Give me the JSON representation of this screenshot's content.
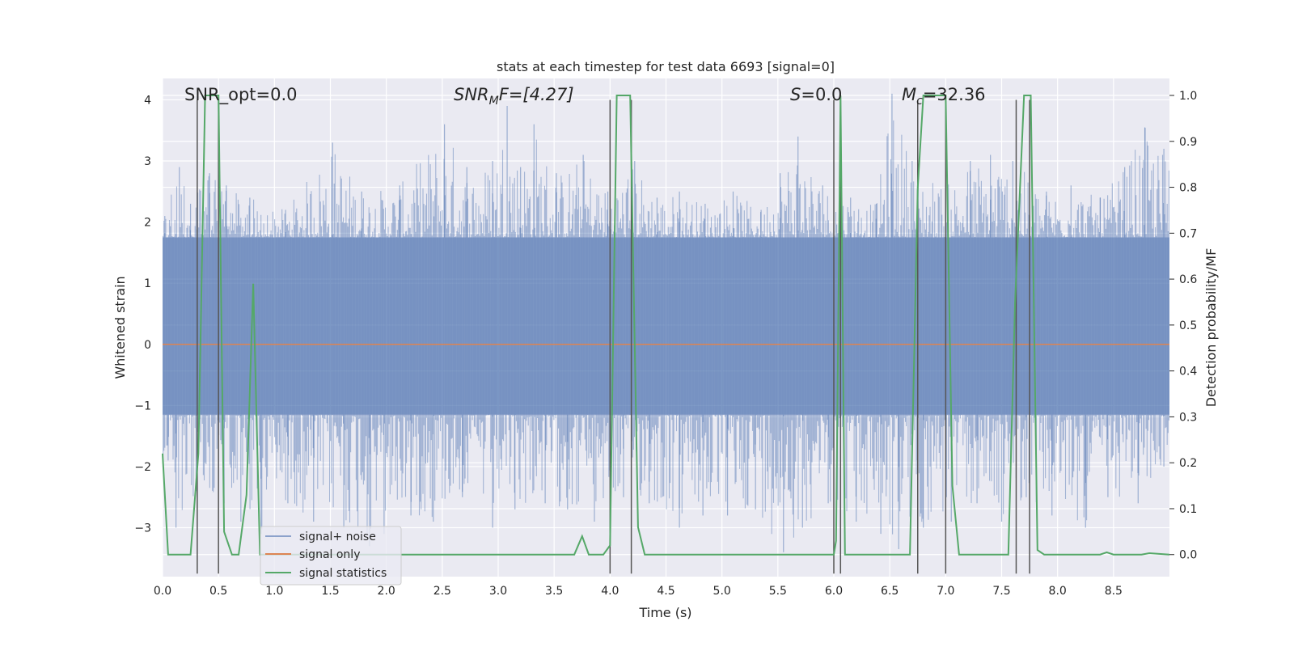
{
  "chart_data": {
    "type": "line",
    "title": "stats at each timestep for test data 6693 [signal=0]",
    "xlabel": "Time (s)",
    "ylabel": "Whitened strain",
    "ylabel_right": "Detection probability/MF",
    "xlim": [
      0.0,
      9.0
    ],
    "ylim": [
      -3.8,
      4.35
    ],
    "ylim_right": [
      -0.048,
      1.037
    ],
    "xticks": [
      "0.0",
      "0.5",
      "1.0",
      "1.5",
      "2.0",
      "2.5",
      "3.0",
      "3.5",
      "4.0",
      "4.5",
      "5.0",
      "5.5",
      "6.0",
      "6.5",
      "7.0",
      "7.5",
      "8.0",
      "8.5"
    ],
    "xtick_values": [
      0.0,
      0.5,
      1.0,
      1.5,
      2.0,
      2.5,
      3.0,
      3.5,
      4.0,
      4.5,
      5.0,
      5.5,
      6.0,
      6.5,
      7.0,
      7.5,
      8.0,
      8.5
    ],
    "yticks": [
      "−3",
      "−2",
      "−1",
      "0",
      "1",
      "2",
      "3",
      "4"
    ],
    "ytick_values": [
      -3,
      -2,
      -1,
      0,
      1,
      2,
      3,
      4
    ],
    "yticks_right": [
      "0.0",
      "0.1",
      "0.2",
      "0.3",
      "0.4",
      "0.5",
      "0.6",
      "0.7",
      "0.8",
      "0.9",
      "1.0"
    ],
    "ytick_values_right": [
      0.0,
      0.1,
      0.2,
      0.3,
      0.4,
      0.5,
      0.6,
      0.7,
      0.8,
      0.9,
      1.0
    ],
    "annotations": {
      "snr_opt": "SNR_opt=0.0",
      "snr_mf_main": "SNR",
      "snr_mf_sub": "M",
      "snr_mf_rest": "F=[4.27]",
      "s_italic": "S",
      "s_rest": "=0.0",
      "mc_main": "M",
      "mc_sub": "c",
      "mc_rest": "=32.36"
    },
    "legend": {
      "position": "lower-left",
      "entries": [
        {
          "label": "signal+ noise",
          "color": "#4c72b0"
        },
        {
          "label": "signal only",
          "color": "#dd8452"
        },
        {
          "label": "signal statistics",
          "color": "#55a868"
        }
      ]
    },
    "noise_series": {
      "name": "signal+ noise",
      "color": "#4c72b0",
      "core_envelope": [
        -1.15,
        1.75
      ],
      "peaks_up": [
        {
          "x": 0.02,
          "y": 2.1
        },
        {
          "x": 0.15,
          "y": 2.9
        },
        {
          "x": 0.25,
          "y": 2.3
        },
        {
          "x": 0.42,
          "y": 2.8
        },
        {
          "x": 0.5,
          "y": 3.3
        },
        {
          "x": 0.57,
          "y": 2.6
        },
        {
          "x": 0.78,
          "y": 2.4
        },
        {
          "x": 1.1,
          "y": 2.2
        },
        {
          "x": 1.52,
          "y": 3.3
        },
        {
          "x": 1.78,
          "y": 2.5
        },
        {
          "x": 2.12,
          "y": 2.6
        },
        {
          "x": 2.52,
          "y": 3.6
        },
        {
          "x": 2.72,
          "y": 2.9
        },
        {
          "x": 2.95,
          "y": 3.0
        },
        {
          "x": 3.08,
          "y": 3.9
        },
        {
          "x": 3.2,
          "y": 2.9
        },
        {
          "x": 3.32,
          "y": 3.6
        },
        {
          "x": 3.52,
          "y": 2.8
        },
        {
          "x": 3.76,
          "y": 3.1
        },
        {
          "x": 3.98,
          "y": 2.5
        },
        {
          "x": 4.22,
          "y": 3.0
        },
        {
          "x": 4.42,
          "y": 2.4
        },
        {
          "x": 4.62,
          "y": 2.5
        },
        {
          "x": 4.85,
          "y": 2.3
        },
        {
          "x": 5.1,
          "y": 2.5
        },
        {
          "x": 5.35,
          "y": 2.2
        },
        {
          "x": 5.52,
          "y": 2.8
        },
        {
          "x": 5.68,
          "y": 3.4
        },
        {
          "x": 5.9,
          "y": 2.6
        },
        {
          "x": 6.15,
          "y": 2.4
        },
        {
          "x": 6.38,
          "y": 2.3
        },
        {
          "x": 6.52,
          "y": 4.1
        },
        {
          "x": 6.7,
          "y": 3.0
        },
        {
          "x": 7.0,
          "y": 2.6
        },
        {
          "x": 7.22,
          "y": 3.0
        },
        {
          "x": 7.4,
          "y": 3.1
        },
        {
          "x": 7.6,
          "y": 3.0
        },
        {
          "x": 7.9,
          "y": 2.5
        },
        {
          "x": 8.12,
          "y": 2.6
        },
        {
          "x": 8.38,
          "y": 2.4
        },
        {
          "x": 8.6,
          "y": 2.9
        },
        {
          "x": 8.78,
          "y": 3.55
        },
        {
          "x": 8.95,
          "y": 3.2
        }
      ],
      "peaks_down": [
        {
          "x": 0.05,
          "y": -1.9
        },
        {
          "x": 0.12,
          "y": -3.0
        },
        {
          "x": 0.3,
          "y": -2.4
        },
        {
          "x": 0.55,
          "y": -2.6
        },
        {
          "x": 0.7,
          "y": -2.9
        },
        {
          "x": 0.88,
          "y": -3.1
        },
        {
          "x": 1.12,
          "y": -2.6
        },
        {
          "x": 1.35,
          "y": -2.9
        },
        {
          "x": 1.62,
          "y": -3.0
        },
        {
          "x": 1.85,
          "y": -3.3
        },
        {
          "x": 1.98,
          "y": -3.1
        },
        {
          "x": 2.22,
          "y": -2.8
        },
        {
          "x": 2.42,
          "y": -2.9
        },
        {
          "x": 2.68,
          "y": -2.5
        },
        {
          "x": 2.95,
          "y": -3.0
        },
        {
          "x": 3.15,
          "y": -2.7
        },
        {
          "x": 3.42,
          "y": -2.6
        },
        {
          "x": 3.62,
          "y": -2.7
        },
        {
          "x": 3.86,
          "y": -2.9
        },
        {
          "x": 4.12,
          "y": -2.5
        },
        {
          "x": 4.35,
          "y": -2.6
        },
        {
          "x": 4.62,
          "y": -3.0
        },
        {
          "x": 4.83,
          "y": -2.8
        },
        {
          "x": 5.05,
          "y": -2.8
        },
        {
          "x": 5.3,
          "y": -2.7
        },
        {
          "x": 5.55,
          "y": -3.4
        },
        {
          "x": 5.72,
          "y": -3.0
        },
        {
          "x": 5.95,
          "y": -2.6
        },
        {
          "x": 6.2,
          "y": -2.9
        },
        {
          "x": 6.42,
          "y": -3.1
        },
        {
          "x": 6.58,
          "y": -3.35
        },
        {
          "x": 6.8,
          "y": -3.0
        },
        {
          "x": 7.05,
          "y": -2.9
        },
        {
          "x": 7.28,
          "y": -2.6
        },
        {
          "x": 7.5,
          "y": -2.9
        },
        {
          "x": 7.72,
          "y": -2.5
        },
        {
          "x": 7.95,
          "y": -2.8
        },
        {
          "x": 8.25,
          "y": -3.0
        },
        {
          "x": 8.45,
          "y": -2.5
        },
        {
          "x": 8.72,
          "y": -2.6
        },
        {
          "x": 8.95,
          "y": -2.0
        }
      ]
    },
    "signal_only": {
      "name": "signal only",
      "color": "#dd8452",
      "y": 0.0
    },
    "statistics_series": {
      "name": "signal statistics",
      "color": "#55a868",
      "axis": "right",
      "points": [
        [
          0.0,
          0.22
        ],
        [
          0.05,
          0.0
        ],
        [
          0.25,
          0.0
        ],
        [
          0.32,
          0.22
        ],
        [
          0.38,
          1.0
        ],
        [
          0.5,
          1.0
        ],
        [
          0.55,
          0.05
        ],
        [
          0.62,
          0.0
        ],
        [
          0.68,
          0.0
        ],
        [
          0.75,
          0.13
        ],
        [
          0.81,
          0.59
        ],
        [
          0.87,
          0.0
        ],
        [
          3.68,
          0.0
        ],
        [
          3.75,
          0.04
        ],
        [
          3.81,
          0.0
        ],
        [
          3.94,
          0.0
        ],
        [
          4.0,
          0.02
        ],
        [
          4.06,
          1.0
        ],
        [
          4.18,
          1.0
        ],
        [
          4.25,
          0.06
        ],
        [
          4.31,
          0.0
        ],
        [
          6.0,
          0.0
        ],
        [
          6.02,
          0.03
        ],
        [
          6.06,
          1.0
        ],
        [
          6.1,
          0.0
        ],
        [
          6.68,
          0.0
        ],
        [
          6.75,
          0.8
        ],
        [
          6.8,
          1.0
        ],
        [
          7.0,
          1.0
        ],
        [
          7.06,
          0.15
        ],
        [
          7.12,
          0.0
        ],
        [
          7.56,
          0.0
        ],
        [
          7.62,
          0.55
        ],
        [
          7.7,
          1.0
        ],
        [
          7.76,
          1.0
        ],
        [
          7.82,
          0.01
        ],
        [
          7.88,
          0.0
        ],
        [
          8.38,
          0.0
        ],
        [
          8.44,
          0.005
        ],
        [
          8.5,
          0.0
        ],
        [
          8.75,
          0.0
        ],
        [
          8.82,
          0.003
        ],
        [
          9.0,
          0.0
        ]
      ]
    },
    "vertical_markers": {
      "color": "#555555",
      "x_values": [
        0.31,
        0.5,
        4.0,
        4.19,
        6.0,
        6.06,
        6.75,
        7.0,
        7.63,
        7.75
      ],
      "y_range": [
        -3.75,
        4.0
      ]
    }
  }
}
